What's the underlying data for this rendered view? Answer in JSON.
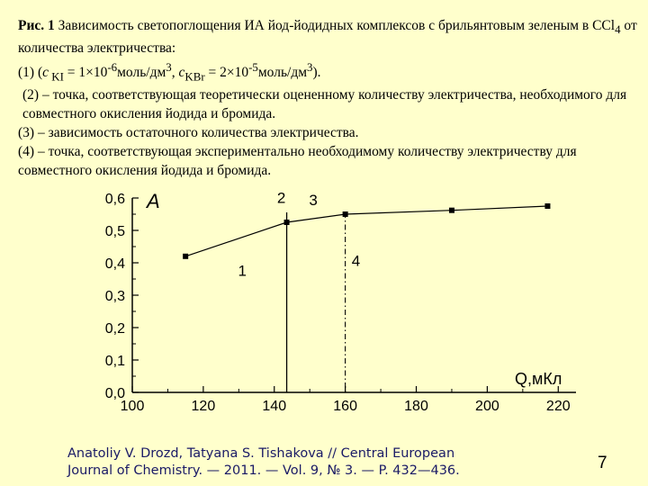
{
  "caption": {
    "fig_label": "Рис. 1",
    "title_text": " Зависимость светопоглощения ИА йод-йодидных комплексов с брильянтовым зеленым в CCl",
    "title_sub": "4",
    "title_tail": " от количества электричества:",
    "line1_a": "(1) (",
    "line1_c1": "c",
    "line1_kI": " KI",
    "line1_eq1": " = 1×10",
    "line1_exp1": "-6",
    "line1_unit1": "моль/дм",
    "line1_pow1": "3",
    "line1_sep": ", ",
    "line1_c2": "c",
    "line1_kbr": "KBr",
    "line1_eq2": " = 2×10",
    "line1_exp2": "-5",
    "line1_unit2": "моль/дм",
    "line1_pow2": "3",
    "line1_end": ").",
    "item2": "(2) – точка, соответствующая теоретически оцененному количеству электричества, необходимого для совместного окисления йодида и бромида.",
    "item3": "(3) – зависимость остаточного количества электричества.",
    "item4": "(4) – точка, соответствующая экспериментально необходимому количеству электричеству для совместного окисления йодида и бромида."
  },
  "chart_data": {
    "type": "line",
    "ylabel": "A",
    "xlabel": "Q,мКл",
    "xlim": [
      100,
      225
    ],
    "ylim": [
      0,
      0.6
    ],
    "x_ticks": [
      "100",
      "120",
      "140",
      "160",
      "180",
      "200",
      "220"
    ],
    "y_ticks": [
      "0,0",
      "0,1",
      "0,2",
      "0,3",
      "0,4",
      "0,5",
      "0,6"
    ],
    "grid": false,
    "series": [
      {
        "x": [
          115,
          143.5,
          160,
          190,
          217
        ],
        "y": [
          0.42,
          0.525,
          0.55,
          0.562,
          0.575
        ]
      }
    ],
    "markers": {
      "solid_vline_x": 143.5,
      "dashed_vline_x": 160
    },
    "annotations": [
      "1",
      "2",
      "3",
      "4"
    ]
  },
  "reference": {
    "line1": "Anatoliy V. Drozd, Tatyana S. Tishakova  // Central European",
    "line2": "Journal of Chemistry. — 2011. — Vol. 9, № 3. — P. 432—436."
  },
  "page_number": "7",
  "colors": {
    "background": "#ffffcc",
    "reference_text": "#1a1a66"
  }
}
